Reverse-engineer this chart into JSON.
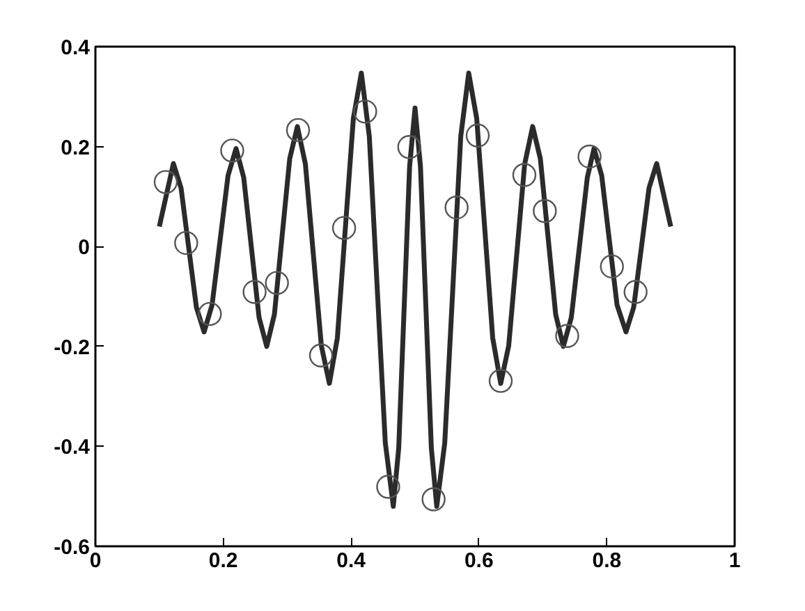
{
  "chart_data": {
    "type": "line",
    "xlim": [
      0,
      1
    ],
    "ylim": [
      -0.6,
      0.4
    ],
    "xticks": [
      0,
      0.2,
      0.4,
      0.6,
      0.8,
      1
    ],
    "yticks": [
      -0.6,
      -0.4,
      -0.2,
      0,
      0.2,
      0.4
    ],
    "grid": false,
    "series": [
      {
        "color": "#2b2b2b",
        "line_style": "solid",
        "marker": "none",
        "x": [
          0.1,
          0.122,
          0.134,
          0.146,
          0.158,
          0.17,
          0.1825,
          0.195,
          0.2075,
          0.22,
          0.232,
          0.244,
          0.256,
          0.268,
          0.28,
          0.292,
          0.304,
          0.316,
          0.3285,
          0.341,
          0.3535,
          0.366,
          0.3785,
          0.391,
          0.4035,
          0.416,
          0.4285,
          0.441,
          0.4535,
          0.466,
          0.4745,
          0.483,
          0.4915,
          0.5,
          0.5085,
          0.517,
          0.5255,
          0.534,
          0.5465,
          0.559,
          0.5715,
          0.584,
          0.5965,
          0.609,
          0.6215,
          0.634,
          0.6465,
          0.659,
          0.6715,
          0.684,
          0.696,
          0.708,
          0.72,
          0.732,
          0.7445,
          0.757,
          0.7695,
          0.78,
          0.792,
          0.804,
          0.816,
          0.83,
          0.842,
          0.854,
          0.866,
          0.878,
          0.9
        ],
        "values": [
          0.04,
          0.166,
          0.117,
          -0.003,
          -0.122,
          -0.171,
          -0.117,
          0.012,
          0.142,
          0.196,
          0.138,
          -0.002,
          -0.142,
          -0.2,
          -0.136,
          0.02,
          0.176,
          0.24,
          0.165,
          -0.017,
          -0.199,
          -0.274,
          -0.183,
          0.037,
          0.256,
          0.347,
          0.22,
          -0.087,
          -0.393,
          -0.52,
          -0.403,
          -0.122,
          0.16,
          0.277,
          0.16,
          -0.122,
          -0.403,
          -0.52,
          -0.393,
          -0.087,
          0.22,
          0.347,
          0.256,
          0.037,
          -0.183,
          -0.274,
          -0.199,
          -0.017,
          0.165,
          0.24,
          0.176,
          0.02,
          -0.136,
          -0.2,
          -0.142,
          -0.002,
          0.138,
          0.196,
          0.142,
          0.012,
          -0.117,
          -0.171,
          -0.122,
          -0.003,
          0.117,
          0.166,
          0.04
        ]
      },
      {
        "type": "scatter",
        "color": "#555555",
        "marker": "circle",
        "x": [
          0.11,
          0.142,
          0.179,
          0.214,
          0.249,
          0.284,
          0.317,
          0.353,
          0.389,
          0.422,
          0.458,
          0.491,
          0.529,
          0.565,
          0.598,
          0.634,
          0.671,
          0.703,
          0.738,
          0.773,
          0.808,
          0.845
        ],
        "values": [
          0.129,
          0.007,
          -0.135,
          0.192,
          -0.091,
          -0.073,
          0.233,
          -0.218,
          0.037,
          0.27,
          -0.481,
          0.199,
          -0.506,
          0.078,
          0.222,
          -0.269,
          0.143,
          0.071,
          -0.179,
          0.18,
          -0.04,
          -0.091
        ]
      }
    ]
  }
}
